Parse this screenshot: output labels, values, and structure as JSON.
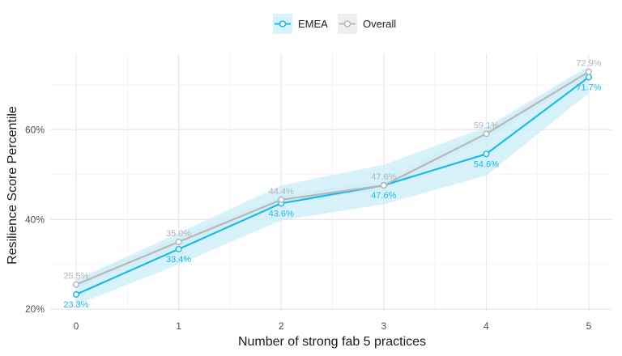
{
  "chart_data": {
    "type": "line",
    "title": "",
    "xlabel": "Number of strong fab 5 practices",
    "ylabel": "Resilience Score Percentile",
    "x": [
      0,
      1,
      2,
      3,
      4,
      5
    ],
    "xticks": [
      "0",
      "1",
      "2",
      "3",
      "4",
      "5"
    ],
    "ylim": [
      19.5,
      77
    ],
    "yticks": [
      {
        "value": 20,
        "label": "20%"
      },
      {
        "value": 40,
        "label": "40%"
      },
      {
        "value": 60,
        "label": "60%"
      }
    ],
    "grid": true,
    "legend_position": "top-center",
    "series": [
      {
        "name": "EMEA",
        "color": "#1bbbe9",
        "band_color": "#c9eef9",
        "values": [
          23.3,
          33.4,
          43.6,
          47.6,
          54.6,
          71.7
        ],
        "labels": [
          "23.3%",
          "33.4%",
          "43.6%",
          "47.6%",
          "54.6%",
          "71.7%"
        ],
        "ci_low": [
          21.0,
          30.0,
          39.8,
          43.4,
          49.8,
          68.2
        ],
        "ci_high": [
          26.6,
          37.0,
          47.6,
          52.2,
          60.6,
          74.2
        ]
      },
      {
        "name": "Overall",
        "color": "#b8b8b8",
        "band_color": "#ececec",
        "values": [
          25.5,
          35.0,
          44.4,
          47.6,
          59.1,
          72.9
        ],
        "labels": [
          "25.5%",
          "35.0%",
          "44.4%",
          "47.6%",
          "59.1%",
          "72.9%"
        ],
        "ci_low": [
          24.6,
          34.0,
          43.6,
          46.7,
          58.0,
          72.0
        ],
        "ci_high": [
          26.5,
          36.0,
          45.3,
          48.6,
          60.2,
          73.8
        ]
      }
    ]
  }
}
